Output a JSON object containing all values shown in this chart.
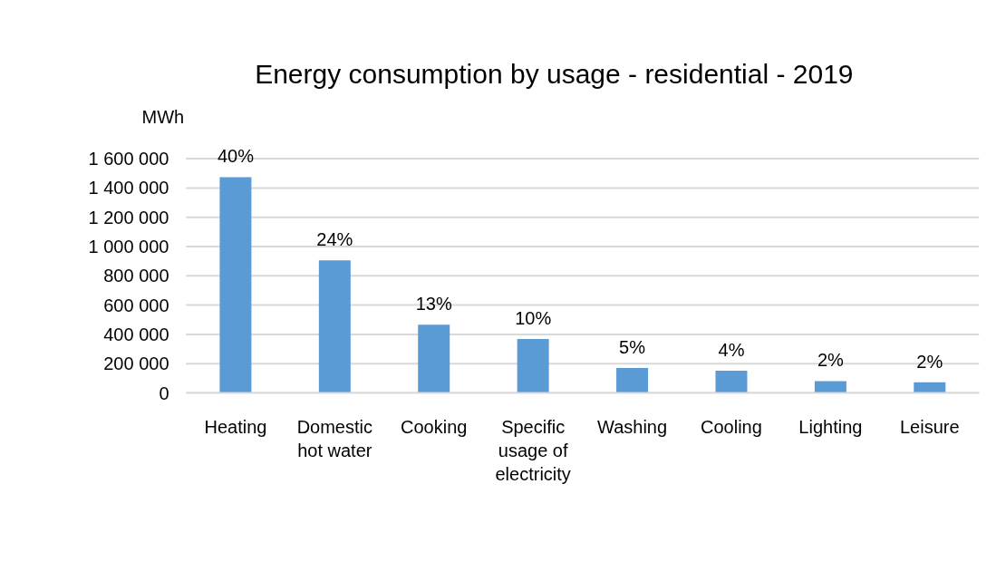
{
  "chart_data": {
    "type": "bar",
    "title": "Energy consumption by usage -  residential - 2019",
    "ylabel": "MWh",
    "categories": [
      "Heating",
      "Domestic hot water",
      "Cooking",
      "Specific usage of electricity",
      "Washing",
      "Cooling",
      "Lighting",
      "Leisure"
    ],
    "values": [
      1474000,
      906000,
      466000,
      368000,
      171000,
      152000,
      81000,
      73000
    ],
    "annotations": [
      {
        "text": "40%",
        "x": "Heating",
        "y": 1474000
      },
      {
        "text": "24%",
        "x": "Domestic hot water",
        "y": 906000
      },
      {
        "text": "13%",
        "x": "Cooking",
        "y": 466000
      },
      {
        "text": "10%",
        "x": "Specific usage of electricity",
        "y": 368000
      },
      {
        "text": "5%",
        "x": "Washing",
        "y": 171000
      },
      {
        "text": "4%",
        "x": "Cooling",
        "y": 152000
      },
      {
        "text": "2%",
        "x": "Lighting",
        "y": 81000
      },
      {
        "text": "2%",
        "x": "Leisure",
        "y": 73000
      }
    ],
    "color": "#5b9bd5",
    "ylim": [
      0,
      1600000
    ],
    "yticks": [
      {
        "value": 0,
        "label": "0"
      },
      {
        "value": 200000,
        "label": "200 000"
      },
      {
        "value": 400000,
        "label": "400 000"
      },
      {
        "value": 600000,
        "label": "600 000"
      },
      {
        "value": 800000,
        "label": "800 000"
      },
      {
        "value": 1000000,
        "label": "1 000 000"
      },
      {
        "value": 1200000,
        "label": "1 200 000"
      },
      {
        "value": 1400000,
        "label": "1 400 000"
      },
      {
        "value": 1600000,
        "label": "1 600 000"
      }
    ],
    "grid": "y"
  }
}
